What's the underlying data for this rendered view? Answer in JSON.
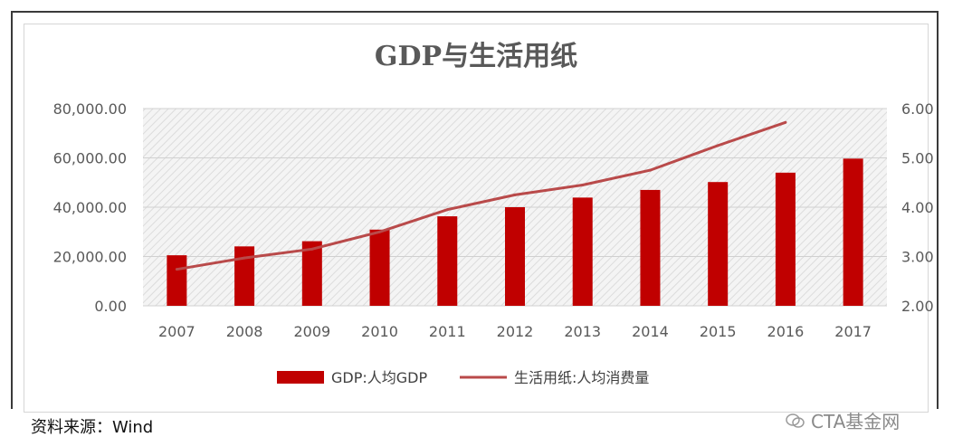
{
  "chart_data": {
    "type": "bar+line",
    "title": "GDP与生活用纸",
    "categories": [
      "2007",
      "2008",
      "2009",
      "2010",
      "2011",
      "2012",
      "2013",
      "2014",
      "2015",
      "2016",
      "2017"
    ],
    "series": [
      {
        "name": "GDP:人均GDP",
        "type": "bar",
        "axis": "left",
        "color": "#c00000",
        "values": [
          20500,
          24100,
          26200,
          30900,
          36300,
          40000,
          43900,
          47000,
          50200,
          54000,
          59700
        ]
      },
      {
        "name": "生活用纸:人均消费量",
        "type": "line",
        "axis": "right",
        "color": "#b94a4a",
        "values": [
          2.74,
          2.97,
          3.15,
          3.5,
          3.95,
          4.25,
          4.45,
          4.75,
          5.25,
          5.72,
          null
        ]
      }
    ],
    "y_left": {
      "min": 0,
      "max": 80000,
      "ticks": [
        "0.00",
        "20,000.00",
        "40,000.00",
        "60,000.00",
        "80,000.00"
      ]
    },
    "y_right": {
      "min": 2,
      "max": 6,
      "ticks": [
        "2.00",
        "3.00",
        "4.00",
        "5.00",
        "6.00"
      ]
    },
    "grid": true,
    "legend_position": "bottom"
  },
  "footer": {
    "source": "资料来源：Wind",
    "watermark": "CTA基金网"
  }
}
